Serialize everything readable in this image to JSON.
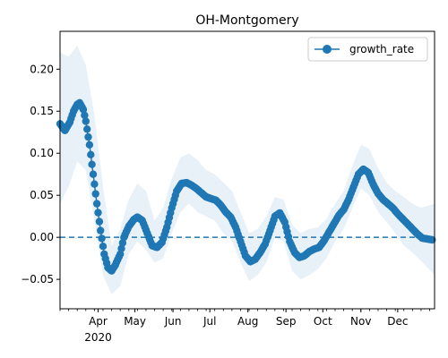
{
  "chart_data": {
    "type": "line",
    "title": "OH-Montgomery",
    "xlabel": "",
    "ylabel": "",
    "x_start": "2020-03-01",
    "x_end": "2020-12-31",
    "xlim": [
      "2020-03-01",
      "2020-12-31"
    ],
    "ylim": [
      -0.085,
      0.245
    ],
    "yticks": [
      -0.05,
      0.0,
      0.05,
      0.1,
      0.15,
      0.2
    ],
    "ytick_labels": [
      "−0.05",
      "0.00",
      "0.05",
      "0.10",
      "0.15",
      "0.20"
    ],
    "xticks": [
      "2020-04-01",
      "2020-05-01",
      "2020-06-01",
      "2020-07-01",
      "2020-08-01",
      "2020-09-01",
      "2020-10-01",
      "2020-11-01",
      "2020-12-01"
    ],
    "xtick_labels": [
      "Apr",
      "May",
      "Jun",
      "Jul",
      "Aug",
      "Sep",
      "Oct",
      "Nov",
      "Dec"
    ],
    "xtick_year_label": "2020",
    "grid": false,
    "legend": {
      "placement": "top-right",
      "entries": [
        "growth_rate"
      ]
    },
    "reference_line": {
      "y": 0.0,
      "style": "dashed"
    },
    "colors": {
      "series": "#1f77b4",
      "band": "#1f77b4"
    },
    "series": [
      {
        "name": "growth_rate",
        "x_start": "2020-03-01",
        "points": [
          [
            "2020-03-01",
            0.135
          ],
          [
            "2020-03-05",
            0.127
          ],
          [
            "2020-03-09",
            0.137
          ],
          [
            "2020-03-12",
            0.15
          ],
          [
            "2020-03-15",
            0.158
          ],
          [
            "2020-03-17",
            0.16
          ],
          [
            "2020-03-20",
            0.152
          ],
          [
            "2020-03-22",
            0.138
          ],
          [
            "2020-03-25",
            0.11
          ],
          [
            "2020-03-28",
            0.075
          ],
          [
            "2020-03-31",
            0.04
          ],
          [
            "2020-04-03",
            0.008
          ],
          [
            "2020-04-06",
            -0.02
          ],
          [
            "2020-04-09",
            -0.036
          ],
          [
            "2020-04-12",
            -0.04
          ],
          [
            "2020-04-15",
            -0.033
          ],
          [
            "2020-04-19",
            -0.02
          ],
          [
            "2020-04-22",
            0.0
          ],
          [
            "2020-04-26",
            0.013
          ],
          [
            "2020-04-30",
            0.021
          ],
          [
            "2020-05-03",
            0.024
          ],
          [
            "2020-05-07",
            0.02
          ],
          [
            "2020-05-11",
            0.005
          ],
          [
            "2020-05-15",
            -0.01
          ],
          [
            "2020-05-19",
            -0.012
          ],
          [
            "2020-05-23",
            -0.006
          ],
          [
            "2020-05-27",
            0.012
          ],
          [
            "2020-05-31",
            0.035
          ],
          [
            "2020-06-04",
            0.055
          ],
          [
            "2020-06-08",
            0.064
          ],
          [
            "2020-06-12",
            0.065
          ],
          [
            "2020-06-16",
            0.062
          ],
          [
            "2020-06-20",
            0.058
          ],
          [
            "2020-06-24",
            0.053
          ],
          [
            "2020-06-28",
            0.048
          ],
          [
            "2020-07-02",
            0.046
          ],
          [
            "2020-07-06",
            0.044
          ],
          [
            "2020-07-10",
            0.038
          ],
          [
            "2020-07-14",
            0.03
          ],
          [
            "2020-07-18",
            0.024
          ],
          [
            "2020-07-22",
            0.012
          ],
          [
            "2020-07-26",
            -0.005
          ],
          [
            "2020-07-30",
            -0.022
          ],
          [
            "2020-08-03",
            -0.029
          ],
          [
            "2020-08-07",
            -0.026
          ],
          [
            "2020-08-11",
            -0.018
          ],
          [
            "2020-08-15",
            -0.008
          ],
          [
            "2020-08-19",
            0.008
          ],
          [
            "2020-08-23",
            0.025
          ],
          [
            "2020-08-27",
            0.029
          ],
          [
            "2020-08-31",
            0.018
          ],
          [
            "2020-09-04",
            -0.005
          ],
          [
            "2020-09-08",
            -0.018
          ],
          [
            "2020-09-12",
            -0.024
          ],
          [
            "2020-09-16",
            -0.022
          ],
          [
            "2020-09-20",
            -0.017
          ],
          [
            "2020-09-24",
            -0.014
          ],
          [
            "2020-09-28",
            -0.012
          ],
          [
            "2020-10-02",
            -0.004
          ],
          [
            "2020-10-06",
            0.006
          ],
          [
            "2020-10-10",
            0.016
          ],
          [
            "2020-10-14",
            0.026
          ],
          [
            "2020-10-18",
            0.033
          ],
          [
            "2020-10-22",
            0.045
          ],
          [
            "2020-10-26",
            0.06
          ],
          [
            "2020-10-30",
            0.075
          ],
          [
            "2020-11-03",
            0.081
          ],
          [
            "2020-11-07",
            0.077
          ],
          [
            "2020-11-11",
            0.063
          ],
          [
            "2020-11-15",
            0.052
          ],
          [
            "2020-11-19",
            0.045
          ],
          [
            "2020-11-23",
            0.04
          ],
          [
            "2020-11-27",
            0.035
          ],
          [
            "2020-12-01",
            0.028
          ],
          [
            "2020-12-05",
            0.022
          ],
          [
            "2020-12-09",
            0.016
          ],
          [
            "2020-12-13",
            0.01
          ],
          [
            "2020-12-17",
            0.004
          ],
          [
            "2020-12-21",
            -0.001
          ],
          [
            "2020-12-25",
            -0.002
          ],
          [
            "2020-12-29",
            -0.003
          ]
        ]
      }
    ],
    "confidence_band": {
      "points": [
        [
          "2020-03-01",
          0.04,
          0.22
        ],
        [
          "2020-03-08",
          0.06,
          0.215
        ],
        [
          "2020-03-15",
          0.09,
          0.228
        ],
        [
          "2020-03-22",
          0.08,
          0.205
        ],
        [
          "2020-03-29",
          0.02,
          0.145
        ],
        [
          "2020-04-05",
          -0.045,
          0.06
        ],
        [
          "2020-04-12",
          -0.068,
          -0.01
        ],
        [
          "2020-04-19",
          -0.058,
          0.01
        ],
        [
          "2020-04-26",
          -0.02,
          0.045
        ],
        [
          "2020-05-03",
          -0.005,
          0.064
        ],
        [
          "2020-05-10",
          -0.015,
          0.055
        ],
        [
          "2020-05-17",
          -0.03,
          0.02
        ],
        [
          "2020-05-24",
          -0.025,
          0.035
        ],
        [
          "2020-05-31",
          0.005,
          0.07
        ],
        [
          "2020-06-07",
          0.03,
          0.095
        ],
        [
          "2020-06-14",
          0.04,
          0.1
        ],
        [
          "2020-06-21",
          0.03,
          0.092
        ],
        [
          "2020-06-28",
          0.025,
          0.08
        ],
        [
          "2020-07-05",
          0.02,
          0.075
        ],
        [
          "2020-07-12",
          0.005,
          0.065
        ],
        [
          "2020-07-19",
          -0.005,
          0.055
        ],
        [
          "2020-07-26",
          -0.03,
          0.03
        ],
        [
          "2020-08-02",
          -0.052,
          0.005
        ],
        [
          "2020-08-09",
          -0.045,
          0.01
        ],
        [
          "2020-08-16",
          -0.03,
          0.025
        ],
        [
          "2020-08-23",
          0.0,
          0.048
        ],
        [
          "2020-08-30",
          -0.005,
          0.045
        ],
        [
          "2020-09-06",
          -0.04,
          0.015
        ],
        [
          "2020-09-13",
          -0.05,
          0.005
        ],
        [
          "2020-09-20",
          -0.045,
          0.01
        ],
        [
          "2020-09-27",
          -0.038,
          0.012
        ],
        [
          "2020-10-04",
          -0.025,
          0.022
        ],
        [
          "2020-10-11",
          -0.005,
          0.04
        ],
        [
          "2020-10-18",
          0.01,
          0.055
        ],
        [
          "2020-10-25",
          0.035,
          0.085
        ],
        [
          "2020-11-01",
          0.058,
          0.11
        ],
        [
          "2020-11-08",
          0.05,
          0.105
        ],
        [
          "2020-11-15",
          0.03,
          0.082
        ],
        [
          "2020-11-22",
          0.018,
          0.065
        ],
        [
          "2020-11-29",
          0.005,
          0.055
        ],
        [
          "2020-12-06",
          -0.01,
          0.048
        ],
        [
          "2020-12-13",
          -0.018,
          0.04
        ],
        [
          "2020-12-20",
          -0.028,
          0.035
        ],
        [
          "2020-12-31",
          -0.045,
          0.04
        ]
      ]
    }
  }
}
